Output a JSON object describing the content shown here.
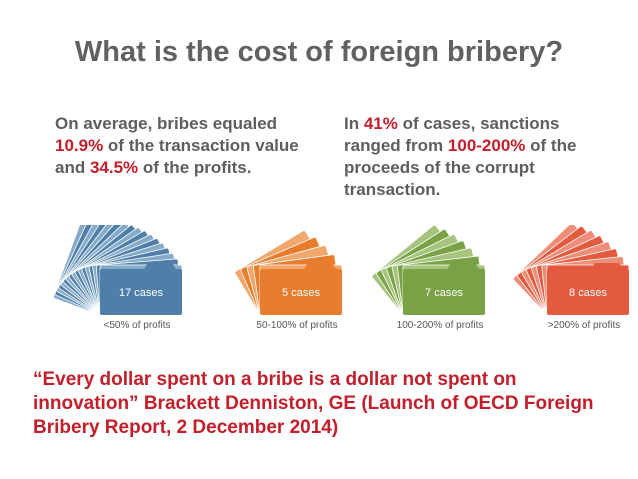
{
  "title": "What is the cost of foreign bribery?",
  "left_stat": {
    "t1": "On average, bribes equaled",
    "v1": "10.9%",
    "t2": " of the transaction value and ",
    "v2": "34.5%",
    "t3": " of the profits."
  },
  "right_stat": {
    "t1": "In ",
    "v1": "41%",
    "t2": " of cases, sanctions ranged from ",
    "v2": "100-200%",
    "t3": " of the proceeds of the corrupt transaction."
  },
  "groups": [
    {
      "cases": 17,
      "label": "17 cases",
      "caption": "<50% of profits",
      "color": "#4f7fa8",
      "light": "#86abc9"
    },
    {
      "cases": 5,
      "label": "5 cases",
      "caption": "50-100% of profits",
      "color": "#e87d2e",
      "light": "#f2a76d"
    },
    {
      "cases": 7,
      "label": "7 cases",
      "caption": "100-200% of profits",
      "color": "#79a145",
      "light": "#a6c47d"
    },
    {
      "cases": 8,
      "label": "8 cases",
      "caption": ">200% of profits",
      "color": "#e35a3f",
      "light": "#ee8e78"
    }
  ],
  "quote": "“Every dollar spent on a bribe is a dollar not spent on innovation” Brackett Denniston, GE (Launch of OECD Foreign Bribery Report, 2 December 2014)",
  "colors": {
    "title": "#616161",
    "body_text": "#5e5e5e",
    "highlight": "#c41e2a",
    "caption": "#555555"
  }
}
